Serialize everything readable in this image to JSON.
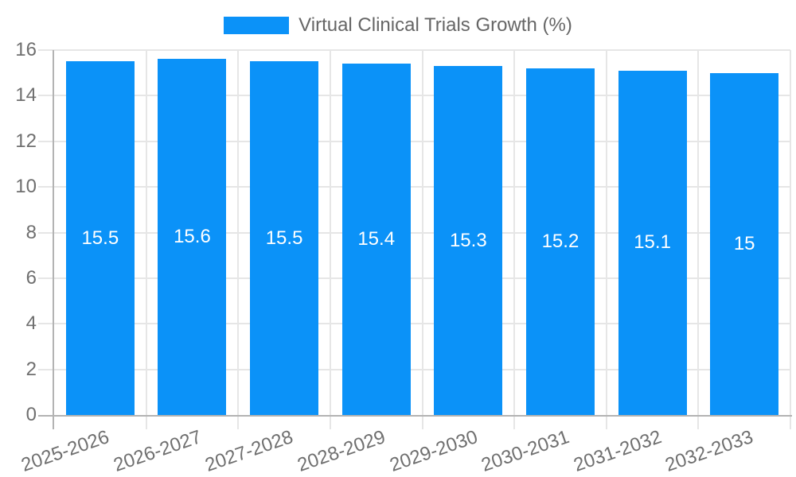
{
  "legend": {
    "label": "Virtual Clinical Trials Growth (%)"
  },
  "chart_data": {
    "type": "bar",
    "title": "Virtual Clinical Trials Growth (%)",
    "xlabel": "",
    "ylabel": "",
    "categories": [
      "2025-2026",
      "2026-2027",
      "2027-2028",
      "2028-2029",
      "2029-2030",
      "2030-2031",
      "2031-2032",
      "2032-2033"
    ],
    "series": [
      {
        "name": "Virtual Clinical Trials Growth (%)",
        "values": [
          15.5,
          15.6,
          15.5,
          15.4,
          15.3,
          15.2,
          15.1,
          15
        ]
      }
    ],
    "value_labels": [
      "15.5",
      "15.6",
      "15.5",
      "15.4",
      "15.3",
      "15.2",
      "15.1",
      "15"
    ],
    "ylim": [
      0,
      16
    ],
    "yticks": [
      0,
      2,
      4,
      6,
      8,
      10,
      12,
      14,
      16
    ],
    "grid": true,
    "legend_position": "top",
    "x_label_rotation_deg": -19,
    "colors": {
      "bar": "#0b92f8",
      "grid": "#e6e6e6",
      "axis": "#b3b3b3",
      "tick_text": "#6f6f6f",
      "legend_text": "#666666",
      "value_text": "#ffffff",
      "background": "#ffffff"
    }
  }
}
